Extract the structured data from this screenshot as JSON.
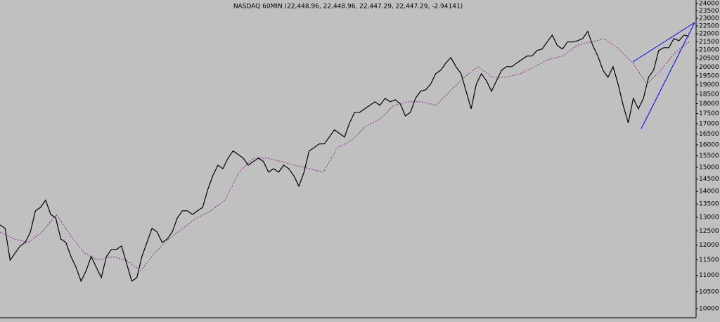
{
  "chart_data": {
    "type": "line",
    "title": "NASDAQ 60MIN (22,448.96, 22,448.96, 22,447.29, 22,447.29, -2.94141)",
    "log_scale": true,
    "ylim": [
      9740,
      24240
    ],
    "yticks": [
      10000,
      10500,
      11000,
      11500,
      12000,
      12500,
      13000,
      13500,
      14000,
      14500,
      15000,
      15500,
      16000,
      16500,
      17000,
      17500,
      18000,
      18500,
      19000,
      19500,
      20000,
      20500,
      21000,
      21500,
      22000,
      22500,
      23000,
      23500,
      24000
    ],
    "series": [
      {
        "color": "#000000",
        "values": [
          12714,
          12590,
          11490,
          11730,
          11970,
          12090,
          12460,
          13240,
          13370,
          13650,
          13100,
          12970,
          12210,
          12090,
          11610,
          11260,
          10820,
          11150,
          11610,
          11260,
          10930,
          11610,
          11850,
          11850,
          11970,
          11380,
          10820,
          10930,
          11610,
          12090,
          12590,
          12460,
          12090,
          12210,
          12460,
          12970,
          13240,
          13240,
          13100,
          13240,
          13370,
          14060,
          14640,
          15090,
          14940,
          15400,
          15720,
          15560,
          15400,
          15090,
          15250,
          15400,
          15250,
          14790,
          14940,
          14790,
          15090,
          14940,
          14640,
          14210,
          14790,
          15720,
          15870,
          16040,
          16040,
          16360,
          16700,
          16530,
          16360,
          17040,
          17560,
          17560,
          17740,
          17920,
          18100,
          17920,
          18280,
          18100,
          18210,
          17990,
          17380,
          17560,
          18280,
          18660,
          18730,
          19040,
          19620,
          19820,
          20230,
          20550,
          20020,
          19620,
          18660,
          17740,
          19040,
          19620,
          19230,
          18660,
          19230,
          19820,
          20020,
          20020,
          20230,
          20430,
          20640,
          20640,
          20970,
          21060,
          21490,
          21920,
          21270,
          21060,
          21490,
          21490,
          21570,
          21700,
          22150,
          21270,
          20640,
          19820,
          19420,
          20020,
          19040,
          17920,
          17040,
          18280,
          17740,
          18280,
          19420,
          19820,
          20970,
          21140,
          21140,
          21700,
          21570,
          21920,
          21840
        ]
      },
      {
        "color": "#800080",
        "dashed": true,
        "values": [
          12460,
          12210,
          12090,
          12460,
          13100,
          12340,
          11730,
          11490,
          11610,
          11490,
          11150,
          11730,
          12210,
          12590,
          12970,
          13240,
          13650,
          14790,
          15400,
          15400,
          15250,
          15090,
          14940,
          14790,
          15870,
          16200,
          16870,
          17210,
          17920,
          18100,
          18100,
          17920,
          18660,
          19420,
          20020,
          19420,
          19420,
          19620,
          20020,
          20430,
          20640,
          21270,
          21490,
          21700,
          21060,
          20230,
          19040,
          19820,
          20850,
          21490
        ]
      }
    ]
  }
}
